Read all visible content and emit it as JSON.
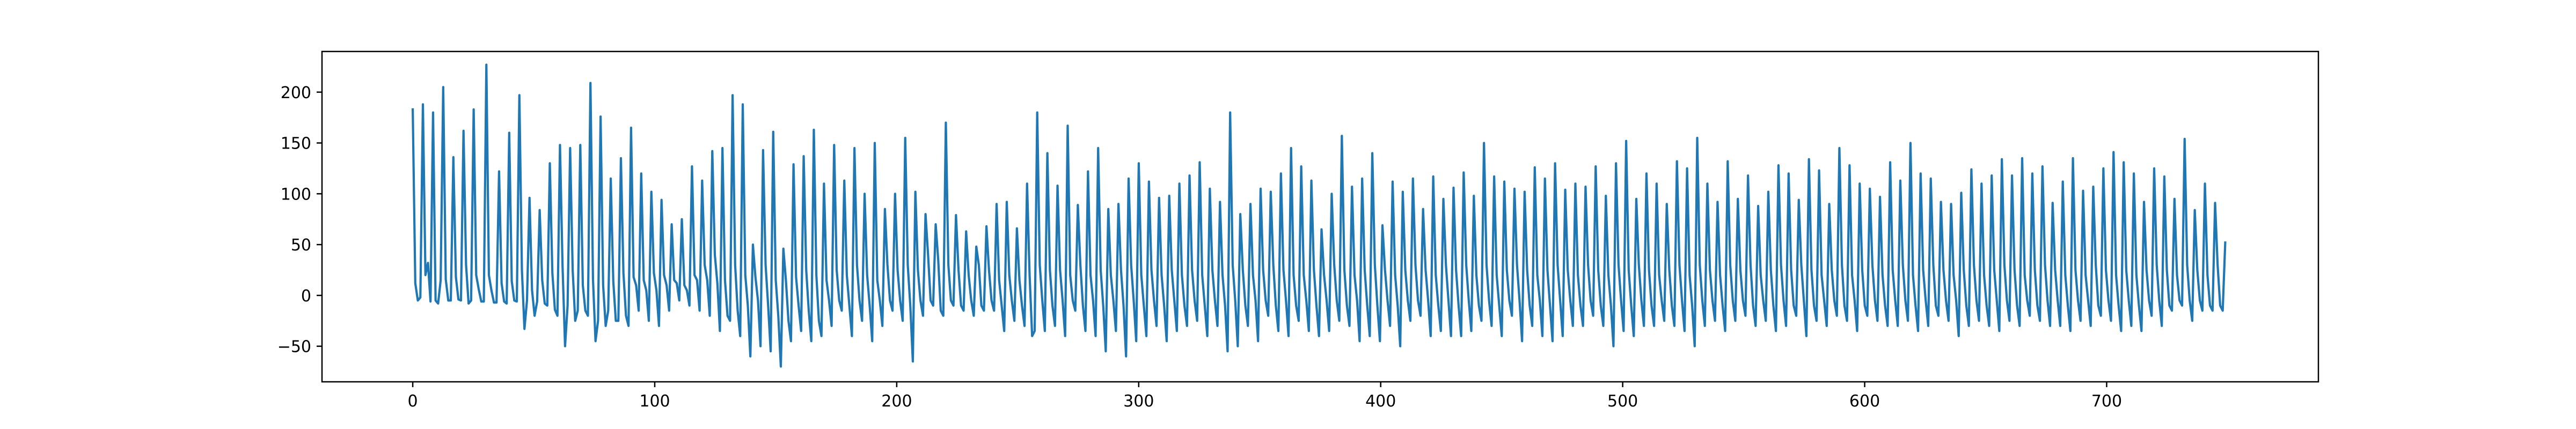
{
  "chart_data": {
    "type": "line",
    "title": "",
    "xlabel": "",
    "ylabel": "",
    "xlim": [
      -37.5,
      787.5
    ],
    "ylim": [
      -85,
      240
    ],
    "x_ticks": [
      0,
      100,
      200,
      300,
      400,
      500,
      600,
      700
    ],
    "y_ticks": [
      -50,
      0,
      50,
      100,
      150,
      200
    ],
    "x_tick_labels": [
      "0",
      "100",
      "200",
      "300",
      "400",
      "500",
      "600",
      "700"
    ],
    "y_tick_labels": [
      "−50",
      "0",
      "50",
      "100",
      "150",
      "200"
    ],
    "grid": false,
    "legend": "none",
    "line_color": "#1f77b4",
    "x_start": 0,
    "x_end": 749,
    "series": [
      {
        "values": [
          183,
          12,
          -5,
          -2,
          188,
          20,
          32,
          -6,
          180,
          -5,
          -8,
          15,
          205,
          16,
          -5,
          -5,
          136,
          18,
          -4,
          -5,
          162,
          30,
          -8,
          -5,
          183,
          20,
          6,
          -6,
          -6,
          227,
          20,
          5,
          -7,
          -7,
          122,
          12,
          -6,
          -8,
          160,
          14,
          -5,
          -6,
          197,
          25,
          -33,
          -5,
          96,
          5,
          -20,
          -6,
          84,
          15,
          -8,
          -10,
          130,
          22,
          -14,
          -20,
          148,
          30,
          -50,
          -10,
          145,
          25,
          -25,
          -15,
          148,
          10,
          -15,
          -20,
          209,
          16,
          -45,
          -25,
          176,
          10,
          -30,
          -15,
          115,
          14,
          -25,
          -25,
          135,
          22,
          -20,
          -30,
          165,
          18,
          10,
          -15,
          120,
          15,
          5,
          -25,
          102,
          22,
          5,
          -30,
          94,
          20,
          10,
          -15,
          70,
          15,
          12,
          -5,
          75,
          10,
          5,
          -10,
          127,
          20,
          15,
          -15,
          113,
          30,
          15,
          -20,
          142,
          40,
          12,
          -35,
          145,
          15,
          -20,
          -25,
          197,
          30,
          -15,
          -40,
          188,
          20,
          -10,
          -60,
          50,
          18,
          -5,
          -50,
          143,
          30,
          -10,
          -55,
          161,
          15,
          -20,
          -70,
          46,
          15,
          -25,
          -45,
          129,
          18,
          -10,
          -35,
          137,
          25,
          -15,
          -45,
          163,
          20,
          -25,
          -40,
          110,
          15,
          -5,
          -30,
          148,
          25,
          -5,
          -15,
          113,
          20,
          -10,
          -40,
          145,
          30,
          -5,
          -25,
          100,
          20,
          -10,
          -45,
          150,
          15,
          -5,
          -30,
          85,
          30,
          -5,
          -15,
          100,
          25,
          -5,
          -25,
          155,
          30,
          -10,
          -65,
          102,
          25,
          -5,
          -20,
          80,
          40,
          -5,
          -10,
          70,
          35,
          -15,
          -20,
          170,
          30,
          -5,
          -10,
          79,
          25,
          -10,
          -15,
          63,
          20,
          -5,
          -20,
          48,
          30,
          -10,
          -15,
          68,
          25,
          -5,
          -15,
          90,
          15,
          -10,
          -35,
          92,
          20,
          -5,
          -25,
          66,
          15,
          -10,
          -30,
          110,
          20,
          -40,
          -35,
          180,
          30,
          -5,
          -35,
          140,
          25,
          -10,
          -30,
          108,
          25,
          -5,
          -40,
          167,
          20,
          -5,
          -15,
          89,
          30,
          -10,
          -35,
          122,
          20,
          -5,
          -40,
          145,
          25,
          -10,
          -55,
          85,
          20,
          -5,
          -35,
          90,
          25,
          -10,
          -60,
          115,
          30,
          -5,
          -45,
          130,
          20,
          -10,
          -40,
          112,
          25,
          -5,
          -30,
          96,
          20,
          -10,
          -45,
          98,
          25,
          -5,
          -35,
          110,
          20,
          -10,
          -30,
          118,
          25,
          -5,
          -25,
          131,
          20,
          -10,
          -40,
          105,
          25,
          -5,
          -30,
          92,
          20,
          -10,
          -55,
          180,
          30,
          -5,
          -50,
          80,
          25,
          -10,
          -30,
          90,
          20,
          -5,
          -45,
          105,
          25,
          -5,
          -20,
          102,
          30,
          -10,
          -35,
          120,
          25,
          -5,
          -40,
          145,
          20,
          -10,
          -25,
          127,
          20,
          -5,
          -35,
          113,
          25,
          -10,
          -40,
          65,
          20,
          -5,
          -35,
          100,
          30,
          -5,
          -25,
          157,
          25,
          -10,
          -30,
          107,
          20,
          -5,
          -45,
          115,
          25,
          -10,
          -40,
          140,
          30,
          -10,
          -45,
          69,
          25,
          -5,
          -30,
          112,
          20,
          -10,
          -50,
          102,
          25,
          -5,
          -25,
          115,
          30,
          -5,
          -20,
          85,
          25,
          -5,
          -40,
          117,
          20,
          -10,
          -35,
          95,
          30,
          -5,
          -40,
          106,
          25,
          -10,
          -40,
          121,
          30,
          -5,
          -35,
          98,
          20,
          -10,
          -25,
          150,
          30,
          -5,
          -30,
          117,
          20,
          -10,
          -40,
          112,
          25,
          -5,
          -20,
          105,
          30,
          -5,
          -45,
          102,
          25,
          -10,
          -30,
          126,
          20,
          -5,
          -40,
          115,
          25,
          -10,
          -45,
          130,
          30,
          -5,
          -40,
          104,
          25,
          -5,
          -30,
          110,
          20,
          -10,
          -30,
          107,
          30,
          -5,
          -20,
          127,
          25,
          -10,
          -30,
          98,
          20,
          -10,
          -50,
          130,
          30,
          -5,
          -35,
          152,
          25,
          -10,
          -40,
          95,
          30,
          -5,
          -30,
          120,
          25,
          -10,
          -30,
          110,
          20,
          -5,
          -25,
          90,
          25,
          -10,
          -30,
          132,
          30,
          -5,
          -35,
          125,
          20,
          -10,
          -50,
          155,
          30,
          -5,
          -30,
          110,
          25,
          -5,
          -25,
          92,
          20,
          -10,
          -35,
          132,
          30,
          -5,
          -25,
          95,
          25,
          -5,
          -20,
          118,
          30,
          -10,
          -30,
          88,
          20,
          -5,
          -25,
          102,
          25,
          -10,
          -35,
          128,
          30,
          -5,
          -30,
          120,
          25,
          -10,
          -20,
          94,
          30,
          -5,
          -40,
          134,
          25,
          -10,
          -25,
          123,
          20,
          -5,
          -30,
          90,
          25,
          -5,
          -20,
          145,
          30,
          -10,
          -25,
          128,
          20,
          -5,
          -35,
          110,
          25,
          -10,
          -20,
          105,
          30,
          -5,
          -25,
          97,
          20,
          -10,
          -30,
          131,
          25,
          -5,
          -30,
          113,
          30,
          -5,
          -25,
          150,
          20,
          -10,
          -35,
          120,
          25,
          -5,
          -30,
          115,
          30,
          -10,
          -20,
          92,
          25,
          -5,
          -25,
          90,
          20,
          -5,
          -40,
          101,
          25,
          -10,
          -30,
          124,
          30,
          -5,
          -25,
          110,
          20,
          -10,
          -30,
          118,
          25,
          -5,
          -35,
          134,
          30,
          -5,
          -25,
          118,
          25,
          -10,
          -30,
          135,
          20,
          -5,
          -20,
          120,
          25,
          -10,
          -25,
          127,
          30,
          -5,
          -30,
          91,
          25,
          -5,
          -30,
          112,
          20,
          -10,
          -35,
          135,
          25,
          -5,
          -25,
          103,
          20,
          -5,
          -30,
          107,
          30,
          -10,
          -20,
          125,
          25,
          -5,
          -25,
          141,
          20,
          -10,
          -35,
          131,
          25,
          -5,
          -30,
          120,
          20,
          -10,
          -35,
          92,
          25,
          -5,
          -20,
          125,
          30,
          -5,
          -30,
          117,
          25,
          -10,
          -15,
          95,
          20,
          -5,
          -10,
          154,
          30,
          -5,
          -25,
          84,
          25,
          -5,
          -15,
          110,
          20,
          -10,
          -15,
          91,
          30,
          -10,
          -15,
          52
        ]
      }
    ]
  }
}
